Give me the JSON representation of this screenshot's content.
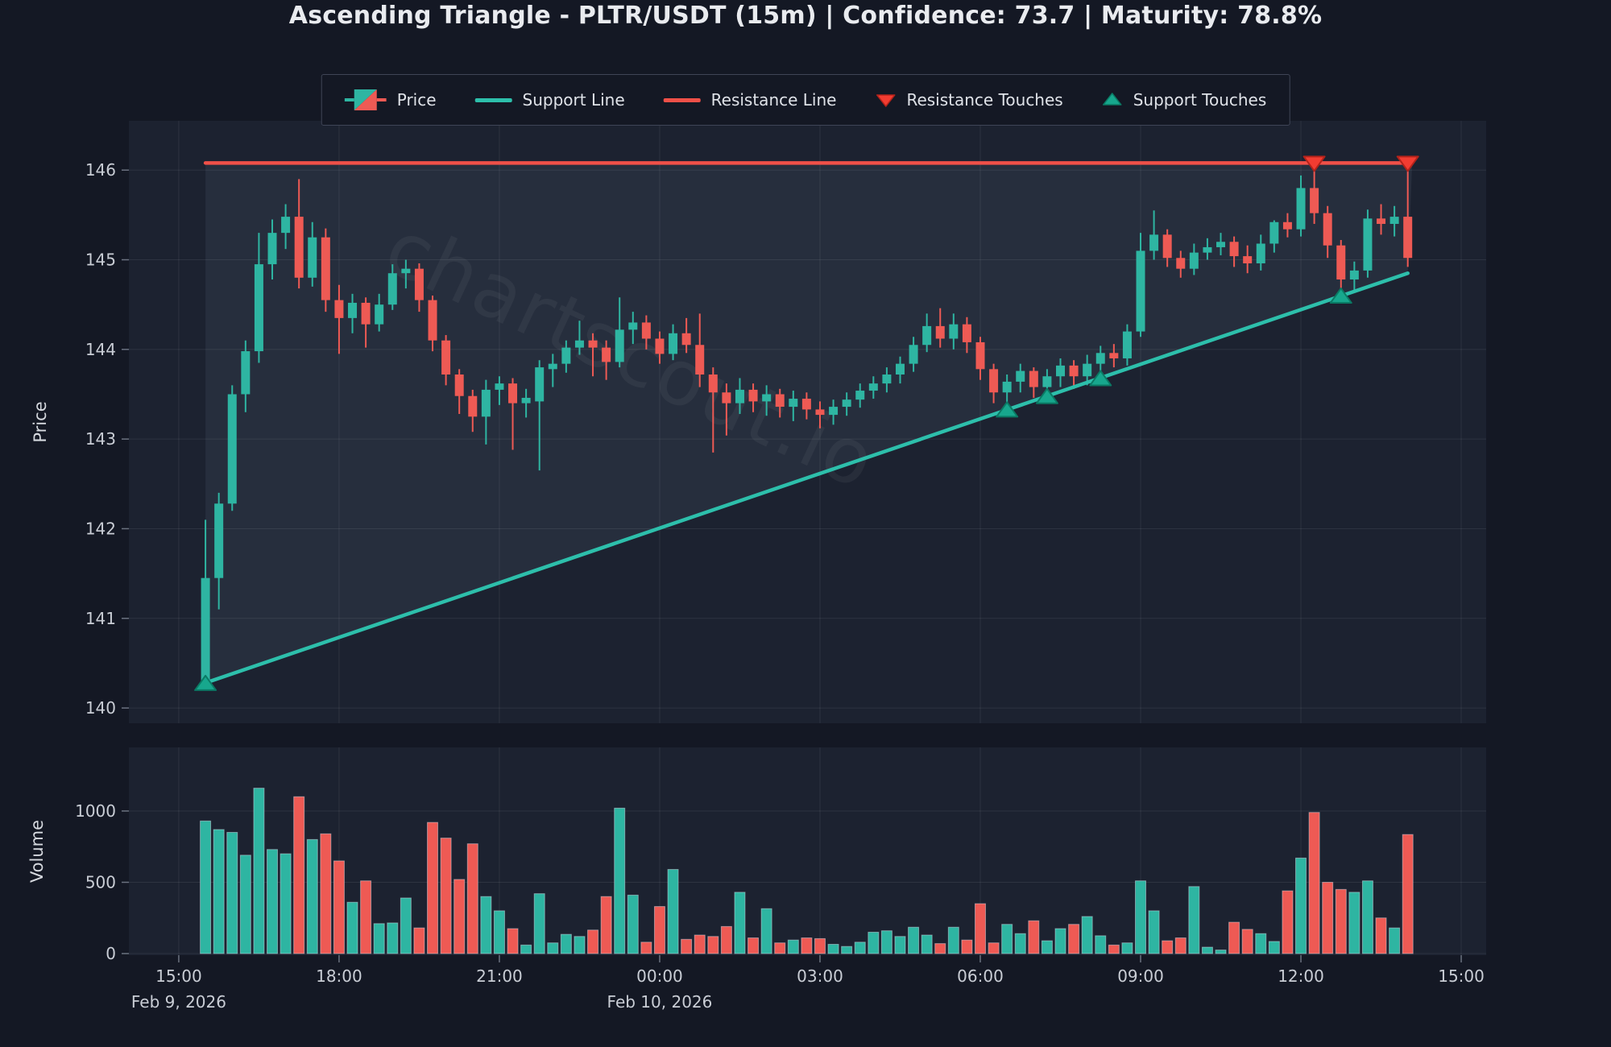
{
  "title": "Ascending Triangle - PLTR/USDT (15m) | Confidence: 73.7 | Maturity: 78.8%",
  "watermark": "chartscout.io",
  "pattern": {
    "name": "Ascending Triangle",
    "symbol": "PLTR/USDT",
    "timeframe": "15m",
    "confidence": "73.7",
    "maturity": "78.8%"
  },
  "legend": {
    "items": [
      {
        "type": "candle-patch",
        "label": "Price"
      },
      {
        "type": "line",
        "color": "#2dbfab",
        "label": "Support Line"
      },
      {
        "type": "line",
        "color": "#ef5048",
        "label": "Resistance Line"
      },
      {
        "type": "triangle-down",
        "color": "#f23c31",
        "edge": "#b4221a",
        "label": "Resistance Touches"
      },
      {
        "type": "triangle-up",
        "color": "#17a78d",
        "edge": "#0a7a64",
        "label": "Support Touches"
      }
    ]
  },
  "colors": {
    "figure_bg": "#141824",
    "panel_bg": "#1c2230",
    "triangle_fill": "rgba(170,188,222,0.08)",
    "grid": "rgba(255,255,255,0.08)",
    "up": "#2eb5a2",
    "down": "#ee5a54",
    "support_line": "#2dbfab",
    "resistance_line": "#ef5048",
    "support_marker": "#17a78d",
    "support_marker_edge": "#0a7a64",
    "resistance_marker": "#f23c31",
    "resistance_marker_edge": "#b4221a",
    "tick_text": "#c9cdd5",
    "volume_bar_edge": "rgba(225,230,240,0.45)",
    "watermark_color": "rgba(255,255,255,0.05)"
  },
  "chart_data": {
    "type": "candlestick-with-volume",
    "x_unit": "minutes since Feb 9, 2026 15:00",
    "xlim": [
      -56,
      1468
    ],
    "price_axis": {
      "label": "Price",
      "ticks": [
        140,
        141,
        142,
        143,
        144,
        145,
        146
      ],
      "ylim": [
        139.83,
        146.55
      ]
    },
    "volume_axis": {
      "label": "Volume",
      "ticks": [
        0,
        500,
        1000
      ],
      "ylim": [
        0,
        1446
      ]
    },
    "x_ticks": [
      {
        "t": 0,
        "label": "15:00"
      },
      {
        "t": 180,
        "label": "18:00"
      },
      {
        "t": 360,
        "label": "21:00"
      },
      {
        "t": 540,
        "label": "00:00"
      },
      {
        "t": 720,
        "label": "03:00"
      },
      {
        "t": 900,
        "label": "06:00"
      },
      {
        "t": 1080,
        "label": "09:00"
      },
      {
        "t": 1260,
        "label": "12:00"
      },
      {
        "t": 1440,
        "label": "15:00"
      }
    ],
    "date_labels": [
      {
        "t": 0,
        "label": "Feb 9, 2026"
      },
      {
        "t": 540,
        "label": "Feb 10, 2026"
      }
    ],
    "candles_format": [
      "t",
      "open",
      "high",
      "low",
      "close",
      "volume"
    ],
    "candles": [
      [
        30,
        140.3,
        142.1,
        140.25,
        141.45,
        930
      ],
      [
        45,
        141.45,
        142.4,
        141.1,
        142.28,
        870
      ],
      [
        60,
        142.28,
        143.6,
        142.2,
        143.5,
        850
      ],
      [
        75,
        143.5,
        144.1,
        143.3,
        143.98,
        690
      ],
      [
        90,
        143.98,
        145.3,
        143.85,
        144.95,
        1160
      ],
      [
        105,
        144.95,
        145.45,
        144.78,
        145.3,
        730
      ],
      [
        120,
        145.3,
        145.62,
        145.12,
        145.48,
        700
      ],
      [
        135,
        145.48,
        145.9,
        144.68,
        144.8,
        1100
      ],
      [
        150,
        144.8,
        145.42,
        144.7,
        145.25,
        800
      ],
      [
        165,
        145.25,
        145.35,
        144.42,
        144.55,
        840
      ],
      [
        180,
        144.55,
        144.72,
        143.95,
        144.35,
        650
      ],
      [
        195,
        144.35,
        144.62,
        144.18,
        144.52,
        360
      ],
      [
        210,
        144.52,
        144.58,
        144.02,
        144.28,
        510
      ],
      [
        225,
        144.28,
        144.62,
        144.2,
        144.5,
        210
      ],
      [
        240,
        144.5,
        144.95,
        144.44,
        144.85,
        215
      ],
      [
        255,
        144.85,
        145.0,
        144.68,
        144.9,
        390
      ],
      [
        270,
        144.9,
        144.96,
        144.42,
        144.55,
        180
      ],
      [
        285,
        144.55,
        144.6,
        143.98,
        144.1,
        920
      ],
      [
        300,
        144.1,
        144.16,
        143.6,
        143.72,
        810
      ],
      [
        315,
        143.72,
        143.78,
        143.28,
        143.48,
        520
      ],
      [
        330,
        143.48,
        143.55,
        143.08,
        143.25,
        770
      ],
      [
        345,
        143.25,
        143.66,
        142.94,
        143.55,
        400
      ],
      [
        360,
        143.55,
        143.7,
        143.38,
        143.62,
        300
      ],
      [
        375,
        143.62,
        143.68,
        142.88,
        143.4,
        175
      ],
      [
        390,
        143.4,
        143.56,
        143.24,
        143.46,
        60
      ],
      [
        405,
        143.42,
        143.88,
        142.65,
        143.8,
        420
      ],
      [
        420,
        143.78,
        143.95,
        143.58,
        143.84,
        75
      ],
      [
        435,
        143.84,
        144.1,
        143.74,
        144.02,
        135
      ],
      [
        450,
        144.02,
        144.32,
        143.94,
        144.1,
        120
      ],
      [
        465,
        144.1,
        144.18,
        143.7,
        144.02,
        165
      ],
      [
        480,
        144.02,
        144.1,
        143.66,
        143.86,
        400
      ],
      [
        495,
        143.86,
        144.58,
        143.8,
        144.22,
        1020
      ],
      [
        510,
        144.22,
        144.42,
        144.06,
        144.3,
        410
      ],
      [
        525,
        144.3,
        144.38,
        144.0,
        144.12,
        80
      ],
      [
        540,
        144.12,
        144.2,
        143.84,
        143.95,
        330
      ],
      [
        555,
        143.95,
        144.28,
        143.88,
        144.18,
        590
      ],
      [
        570,
        144.18,
        144.35,
        143.96,
        144.05,
        100
      ],
      [
        585,
        144.05,
        144.4,
        143.58,
        143.72,
        130
      ],
      [
        600,
        143.72,
        143.8,
        142.85,
        143.52,
        120
      ],
      [
        615,
        143.52,
        143.62,
        143.04,
        143.4,
        190
      ],
      [
        630,
        143.4,
        143.68,
        143.28,
        143.55,
        430
      ],
      [
        645,
        143.55,
        143.62,
        143.3,
        143.42,
        110
      ],
      [
        660,
        143.42,
        143.6,
        143.26,
        143.5,
        315
      ],
      [
        675,
        143.5,
        143.56,
        143.24,
        143.36,
        75
      ],
      [
        690,
        143.36,
        143.54,
        143.2,
        143.45,
        95
      ],
      [
        705,
        143.45,
        143.52,
        143.22,
        143.33,
        110
      ],
      [
        720,
        143.33,
        143.42,
        143.12,
        143.27,
        105
      ],
      [
        735,
        143.27,
        143.44,
        143.16,
        143.36,
        65
      ],
      [
        750,
        143.36,
        143.52,
        143.26,
        143.44,
        50
      ],
      [
        765,
        143.44,
        143.62,
        143.35,
        143.54,
        80
      ],
      [
        780,
        143.54,
        143.7,
        143.45,
        143.62,
        150
      ],
      [
        795,
        143.62,
        143.8,
        143.52,
        143.72,
        160
      ],
      [
        810,
        143.72,
        143.92,
        143.62,
        143.84,
        120
      ],
      [
        825,
        143.84,
        144.14,
        143.75,
        144.05,
        185
      ],
      [
        840,
        144.05,
        144.4,
        143.97,
        144.26,
        130
      ],
      [
        855,
        144.26,
        144.46,
        144.02,
        144.12,
        70
      ],
      [
        870,
        144.12,
        144.4,
        144.0,
        144.28,
        185
      ],
      [
        885,
        144.28,
        144.36,
        143.96,
        144.08,
        95
      ],
      [
        900,
        144.08,
        144.14,
        143.66,
        143.78,
        350
      ],
      [
        915,
        143.78,
        143.84,
        143.4,
        143.52,
        75
      ],
      [
        930,
        143.52,
        143.72,
        143.34,
        143.64,
        205
      ],
      [
        945,
        143.64,
        143.84,
        143.52,
        143.76,
        140
      ],
      [
        960,
        143.76,
        143.8,
        143.46,
        143.58,
        230
      ],
      [
        975,
        143.58,
        143.78,
        143.46,
        143.7,
        90
      ],
      [
        990,
        143.7,
        143.9,
        143.58,
        143.82,
        175
      ],
      [
        1005,
        143.82,
        143.88,
        143.56,
        143.7,
        205
      ],
      [
        1020,
        143.7,
        143.94,
        143.6,
        143.84,
        260
      ],
      [
        1035,
        143.84,
        144.04,
        143.66,
        143.96,
        125
      ],
      [
        1050,
        143.96,
        144.06,
        143.8,
        143.9,
        60
      ],
      [
        1065,
        143.9,
        144.28,
        143.82,
        144.2,
        75
      ],
      [
        1080,
        144.2,
        145.3,
        144.14,
        145.1,
        510
      ],
      [
        1095,
        145.1,
        145.55,
        145.0,
        145.28,
        300
      ],
      [
        1110,
        145.28,
        145.34,
        144.92,
        145.02,
        90
      ],
      [
        1125,
        145.02,
        145.1,
        144.8,
        144.9,
        110
      ],
      [
        1140,
        144.9,
        145.18,
        144.83,
        145.08,
        470
      ],
      [
        1155,
        145.08,
        145.24,
        145.0,
        145.14,
        45
      ],
      [
        1170,
        145.14,
        145.3,
        145.05,
        145.2,
        25
      ],
      [
        1185,
        145.2,
        145.26,
        144.92,
        145.04,
        220
      ],
      [
        1200,
        145.04,
        145.16,
        144.85,
        144.96,
        170
      ],
      [
        1215,
        144.96,
        145.28,
        144.88,
        145.18,
        140
      ],
      [
        1230,
        145.18,
        145.44,
        145.08,
        145.42,
        85
      ],
      [
        1245,
        145.42,
        145.52,
        145.25,
        145.34,
        440
      ],
      [
        1260,
        145.34,
        145.94,
        145.26,
        145.8,
        670
      ],
      [
        1275,
        145.8,
        146.08,
        145.4,
        145.52,
        990
      ],
      [
        1290,
        145.52,
        145.6,
        145.02,
        145.16,
        500
      ],
      [
        1305,
        145.16,
        145.22,
        144.62,
        144.78,
        450
      ],
      [
        1320,
        144.78,
        144.98,
        144.64,
        144.88,
        430
      ],
      [
        1335,
        144.88,
        145.56,
        144.8,
        145.46,
        510
      ],
      [
        1350,
        145.46,
        145.62,
        145.28,
        145.4,
        250
      ],
      [
        1365,
        145.4,
        145.6,
        145.26,
        145.48,
        180
      ],
      [
        1380,
        145.48,
        146.08,
        144.92,
        145.02,
        835
      ]
    ],
    "support_line": {
      "start": {
        "t": 30,
        "price": 140.28
      },
      "end": {
        "t": 1380,
        "price": 144.85
      }
    },
    "resistance_line": {
      "price": 146.08,
      "start_t": 30,
      "end_t": 1385
    },
    "support_touches": [
      {
        "t": 30,
        "price": 140.28
      },
      {
        "t": 930,
        "price": 143.33
      },
      {
        "t": 975,
        "price": 143.48
      },
      {
        "t": 1035,
        "price": 143.68
      },
      {
        "t": 1305,
        "price": 144.6
      }
    ],
    "resistance_touches": [
      {
        "t": 1275,
        "price": 146.08
      },
      {
        "t": 1380,
        "price": 146.08
      }
    ]
  }
}
